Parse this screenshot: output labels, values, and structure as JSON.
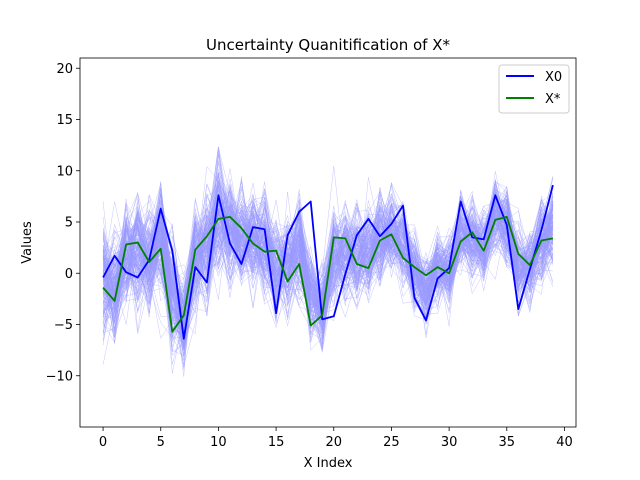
{
  "chart_data": {
    "type": "line",
    "title": "Uncertainty Quanitification of X*",
    "xlabel": "X Index",
    "ylabel": "Values",
    "xlim": [
      -2,
      41
    ],
    "ylim": [
      -15,
      21
    ],
    "xticks": [
      0,
      5,
      10,
      15,
      20,
      25,
      30,
      35,
      40
    ],
    "yticks": [
      -10,
      -5,
      0,
      5,
      10,
      15,
      20
    ],
    "x": [
      0,
      1,
      2,
      3,
      4,
      5,
      6,
      7,
      8,
      9,
      10,
      11,
      12,
      13,
      14,
      15,
      16,
      17,
      18,
      19,
      20,
      21,
      22,
      23,
      24,
      25,
      26,
      27,
      28,
      29,
      30,
      31,
      32,
      33,
      34,
      35,
      36,
      37,
      38,
      39
    ],
    "legend_position": "top-right",
    "grid": false,
    "series": [
      {
        "name": "X0",
        "color": "#0000ff",
        "values": [
          -0.4,
          1.7,
          0.1,
          -0.4,
          1.3,
          6.3,
          2.2,
          -6.4,
          0.6,
          -0.9,
          7.6,
          2.9,
          0.9,
          4.5,
          4.3,
          -3.9,
          3.7,
          6.0,
          7.0,
          -4.5,
          -4.2,
          -0.1,
          3.7,
          5.3,
          3.6,
          4.8,
          6.6,
          -2.4,
          -4.6,
          -0.5,
          0.5,
          7.0,
          3.5,
          3.3,
          7.6,
          4.7,
          -3.5,
          0.4,
          4.2,
          8.6
        ]
      },
      {
        "name": "X*",
        "color": "#008000",
        "values": [
          -1.4,
          -2.7,
          2.8,
          3.0,
          1.1,
          2.4,
          -5.7,
          -4.1,
          2.3,
          3.6,
          5.3,
          5.5,
          4.4,
          2.9,
          2.1,
          2.2,
          -0.8,
          0.9,
          -5.1,
          -4.1,
          3.5,
          3.4,
          0.9,
          0.5,
          3.2,
          3.8,
          1.5,
          0.6,
          -0.2,
          0.6,
          0.0,
          3.1,
          4.0,
          2.2,
          5.2,
          5.5,
          1.9,
          0.8,
          3.2,
          3.4
        ]
      }
    ],
    "ensemble": {
      "color": "#9999ff",
      "samples": 200,
      "center": [
        -1.0,
        -1.3,
        1.6,
        2.0,
        1.1,
        3.6,
        -2.4,
        -4.6,
        1.7,
        2.4,
        5.6,
        4.5,
        3.2,
        3.2,
        2.9,
        0.3,
        0.9,
        2.5,
        -1.9,
        -3.2,
        1.5,
        2.0,
        1.8,
        1.9,
        3.1,
        3.9,
        2.9,
        -0.4,
        -1.7,
        0.4,
        0.2,
        4.2,
        3.5,
        2.5,
        5.6,
        4.8,
        0.5,
        0.7,
        3.4,
        4.3
      ],
      "spread": [
        5.2,
        4.2,
        4.0,
        4.6,
        4.0,
        4.5,
        4.6,
        3.8,
        4.1,
        4.4,
        5.2,
        4.2,
        4.0,
        3.9,
        3.9,
        3.8,
        4.0,
        4.4,
        3.6,
        3.2,
        3.8,
        3.9,
        3.8,
        3.8,
        3.7,
        3.6,
        3.8,
        3.2,
        3.0,
        2.8,
        2.8,
        3.2,
        3.0,
        3.0,
        3.0,
        3.2,
        3.2,
        2.8,
        3.3,
        3.4
      ]
    }
  }
}
